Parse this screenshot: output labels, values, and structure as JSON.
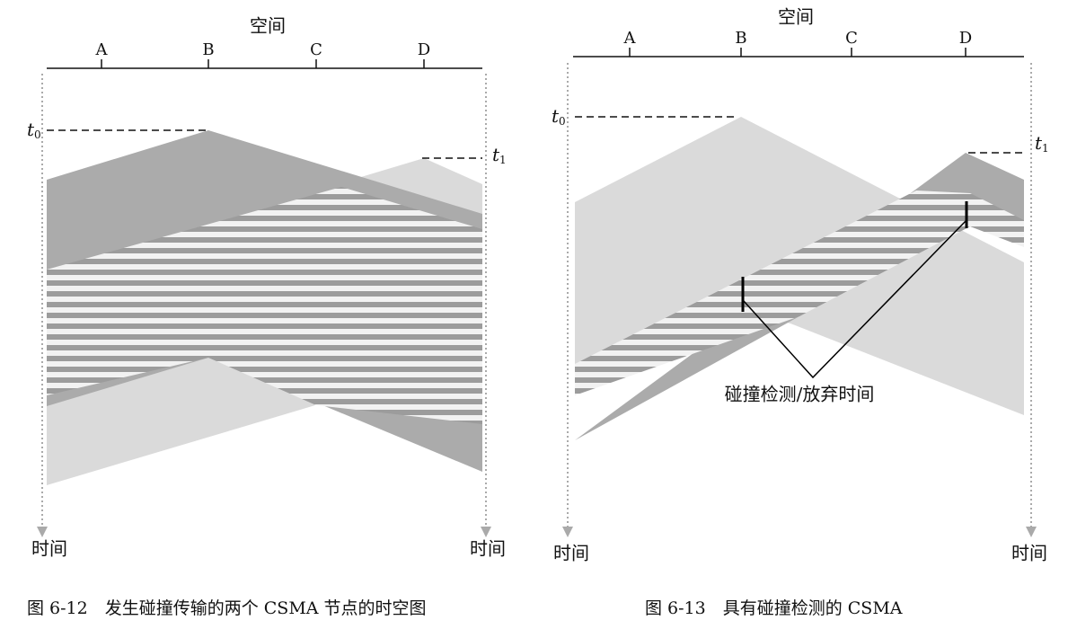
{
  "figures": [
    {
      "space_label": "空间",
      "nodes": [
        "A",
        "B",
        "C",
        "D"
      ],
      "t0": {
        "symbol": "t",
        "subscript": "0"
      },
      "t1": {
        "symbol": "t",
        "subscript": "1"
      },
      "time_left": "时间",
      "time_right": "时间",
      "caption": "图 6-12　发生碰撞传输的两个 CSMA 节点的时空图"
    },
    {
      "space_label": "空间",
      "nodes": [
        "A",
        "B",
        "C",
        "D"
      ],
      "t0": {
        "symbol": "t",
        "subscript": "0"
      },
      "t1": {
        "symbol": "t",
        "subscript": "1"
      },
      "time_left": "时间",
      "time_right": "时间",
      "annotation": "碰撞检测/放弃时间",
      "caption": "图 6-13　具有碰撞检测的 CSMA"
    }
  ]
}
